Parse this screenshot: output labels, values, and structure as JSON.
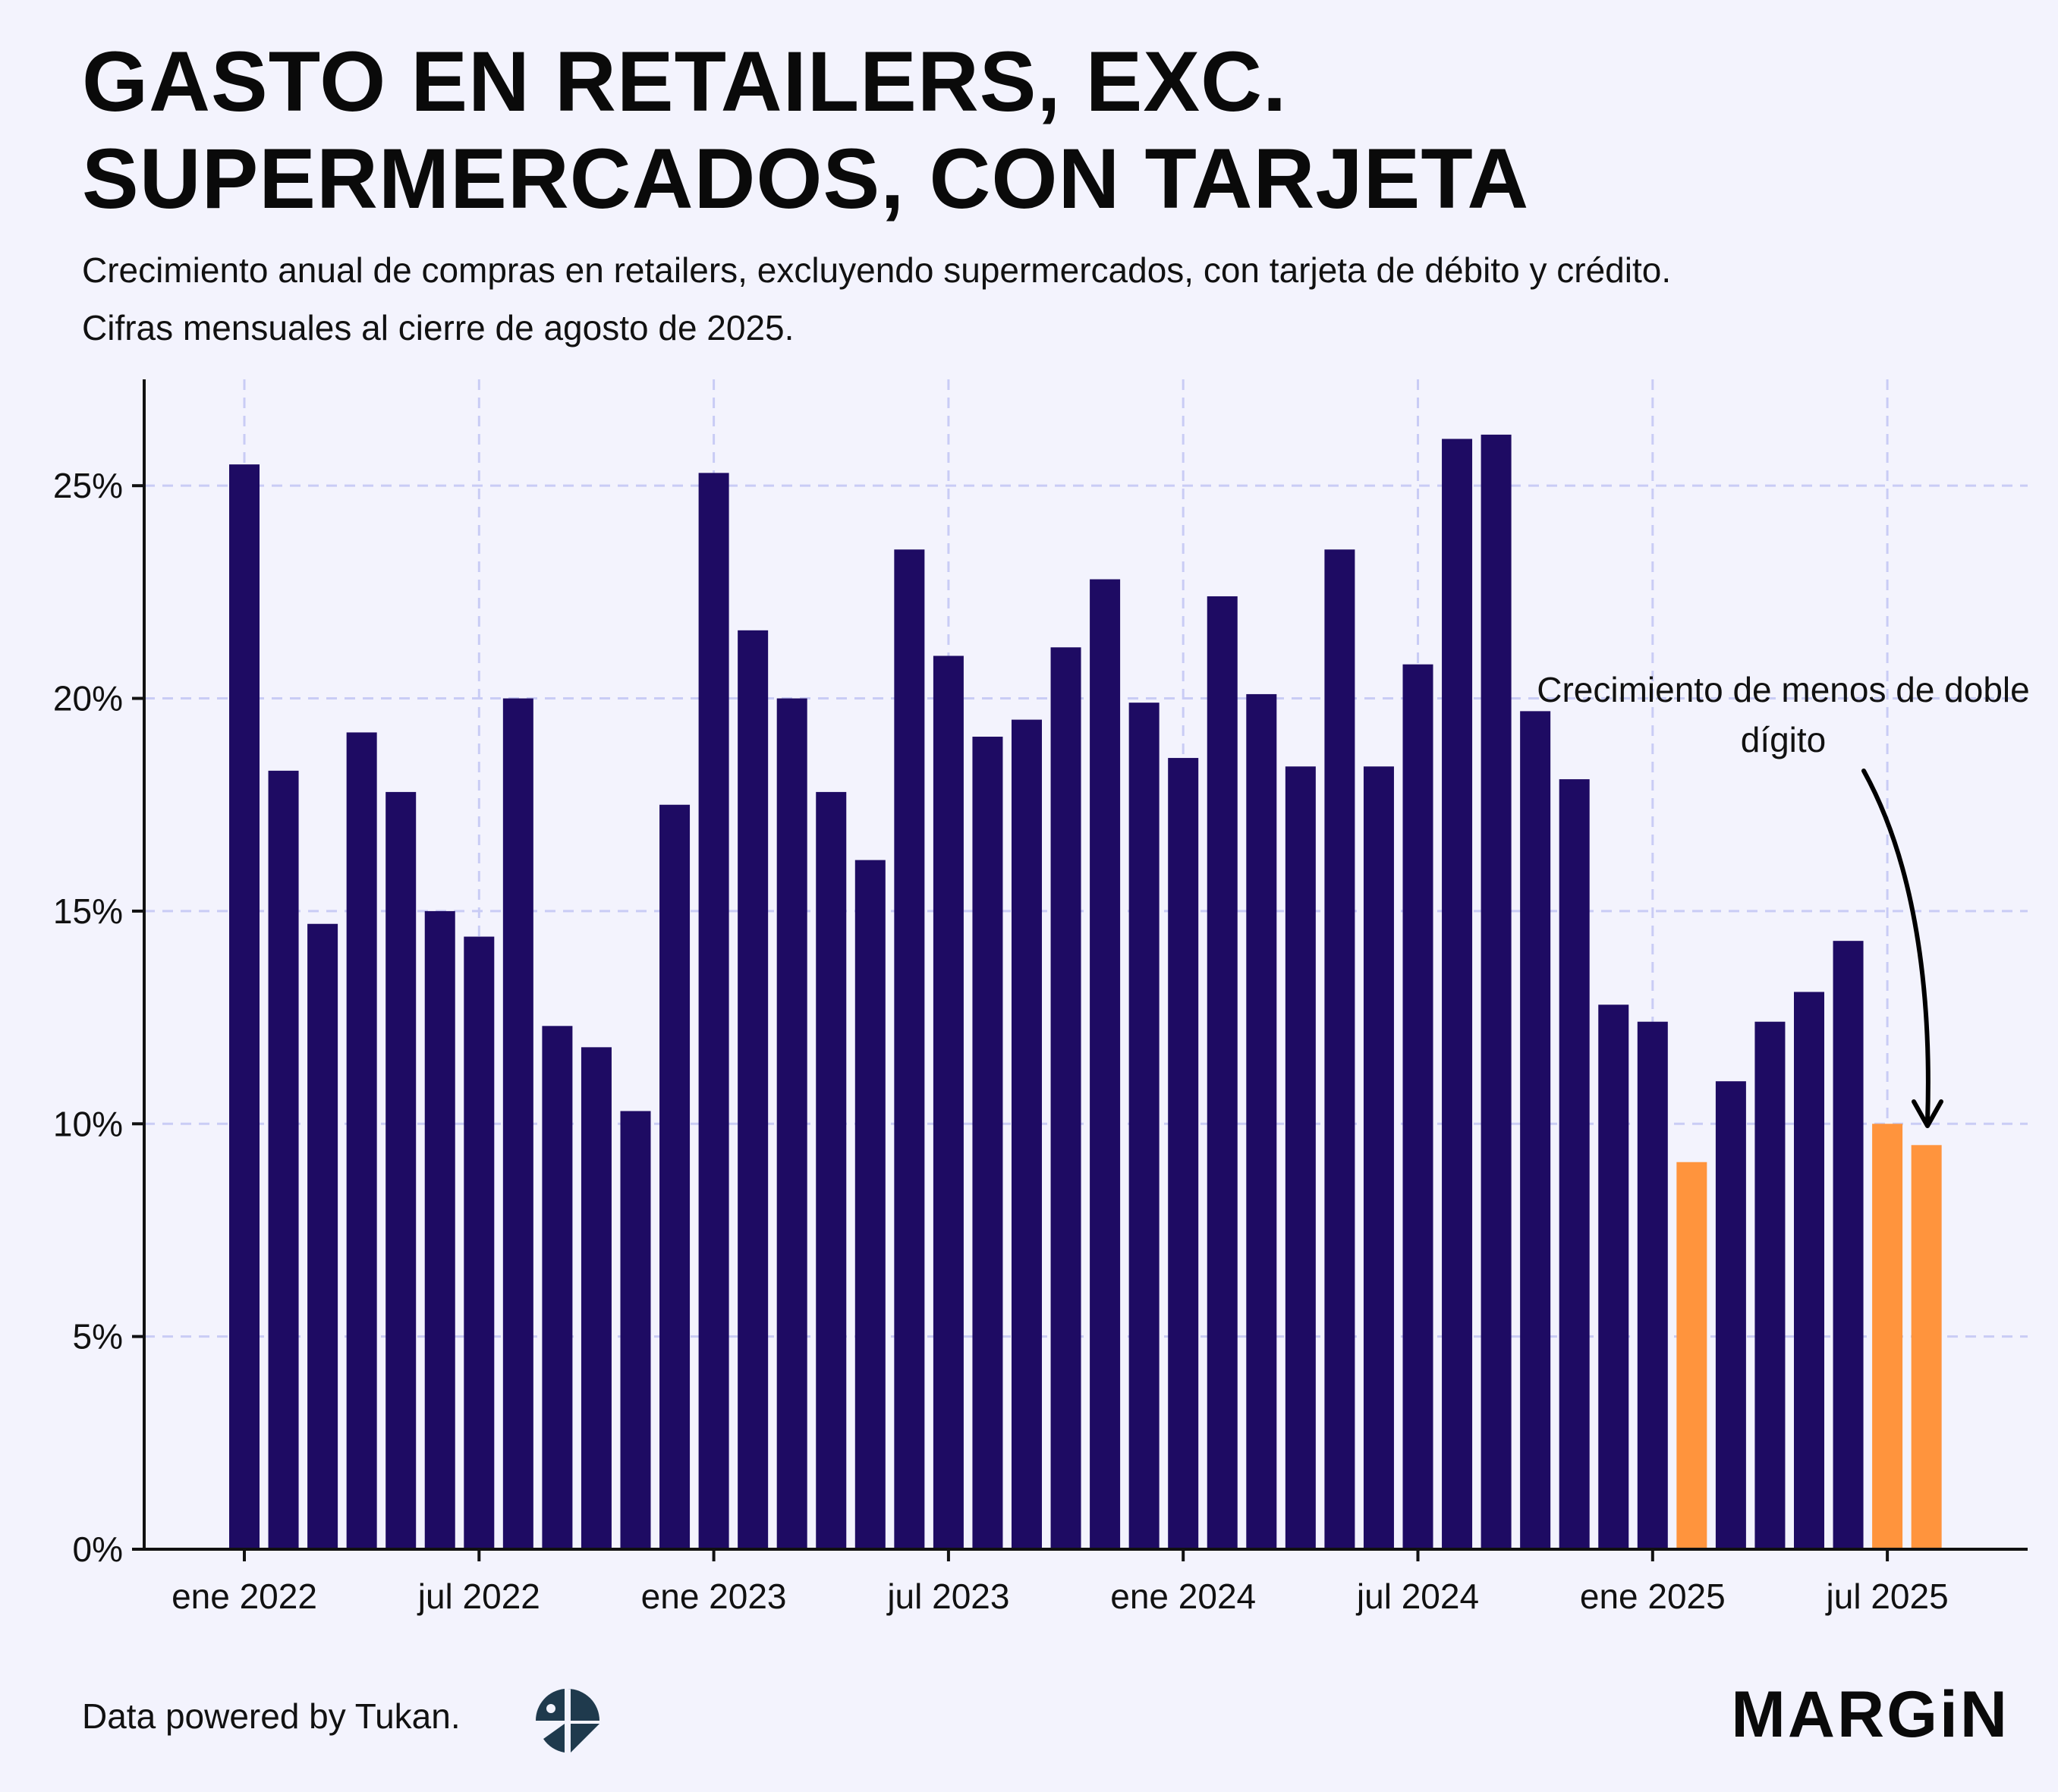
{
  "title": "GASTO EN RETAILERS, EXC. SUPERMERCADOS, CON TARJETA",
  "subtitle_line1": "Crecimiento anual de compras en retailers, excluyendo supermercados, con tarjeta de débito y crédito.",
  "subtitle_line2": "Cifras mensuales al cierre de agosto de 2025.",
  "annotation": {
    "text": "Crecimiento de menos de doble dígito"
  },
  "footer": {
    "source": "Data powered by Tukan.",
    "brand": "MARGiN",
    "tukan_logo_icon": "tukan-logo-icon"
  },
  "colors": {
    "background": "#f3f3fd",
    "bar_default": "#1e0b63",
    "bar_highlight": "#ff943d",
    "grid": "#c9ccf5",
    "axis": "#111111"
  },
  "chart_data": {
    "type": "bar",
    "title": "GASTO EN RETAILERS, EXC. SUPERMERCADOS, CON TARJETA",
    "xlabel": "",
    "ylabel": "",
    "ylim": [
      0,
      27.5
    ],
    "yticks": [
      0,
      5,
      10,
      15,
      20,
      25
    ],
    "ytick_labels": [
      "0%",
      "5%",
      "10%",
      "15%",
      "20%",
      "25%"
    ],
    "xtick_labels": [
      {
        "label": "ene 2022",
        "index": 0
      },
      {
        "label": "jul 2022",
        "index": 6
      },
      {
        "label": "ene 2023",
        "index": 12
      },
      {
        "label": "jul 2023",
        "index": 18
      },
      {
        "label": "ene 2024",
        "index": 24
      },
      {
        "label": "jul 2024",
        "index": 30
      },
      {
        "label": "ene 2025",
        "index": 36
      },
      {
        "label": "jul 2025",
        "index": 42
      }
    ],
    "grid": true,
    "categories": [
      "ene 2022",
      "feb 2022",
      "mar 2022",
      "abr 2022",
      "may 2022",
      "jun 2022",
      "jul 2022",
      "ago 2022",
      "sep 2022",
      "oct 2022",
      "nov 2022",
      "dic 2022",
      "ene 2023",
      "feb 2023",
      "mar 2023",
      "abr 2023",
      "may 2023",
      "jun 2023",
      "jul 2023",
      "ago 2023",
      "sep 2023",
      "oct 2023",
      "nov 2023",
      "dic 2023",
      "ene 2024",
      "feb 2024",
      "mar 2024",
      "abr 2024",
      "may 2024",
      "jun 2024",
      "jul 2024",
      "ago 2024",
      "sep 2024",
      "oct 2024",
      "nov 2024",
      "dic 2024",
      "ene 2025",
      "feb 2025",
      "mar 2025",
      "abr 2025",
      "may 2025",
      "jun 2025",
      "jul 2025",
      "ago 2025"
    ],
    "values": [
      25.5,
      18.3,
      14.7,
      19.2,
      17.8,
      15.0,
      14.4,
      20.0,
      12.3,
      11.8,
      10.3,
      17.5,
      25.3,
      21.6,
      20.0,
      17.8,
      16.2,
      23.5,
      21.0,
      19.1,
      19.5,
      21.2,
      22.8,
      19.9,
      18.6,
      22.4,
      20.1,
      18.4,
      23.5,
      18.4,
      20.8,
      26.1,
      26.2,
      19.7,
      18.1,
      12.8,
      12.4,
      9.1,
      11.0,
      12.4,
      13.1,
      14.3,
      10.0,
      9.5
    ],
    "highlighted": [
      false,
      false,
      false,
      false,
      false,
      false,
      false,
      false,
      false,
      false,
      false,
      false,
      false,
      false,
      false,
      false,
      false,
      false,
      false,
      false,
      false,
      false,
      false,
      false,
      false,
      false,
      false,
      false,
      false,
      false,
      false,
      false,
      false,
      false,
      false,
      false,
      false,
      true,
      false,
      false,
      false,
      false,
      true,
      true
    ]
  }
}
